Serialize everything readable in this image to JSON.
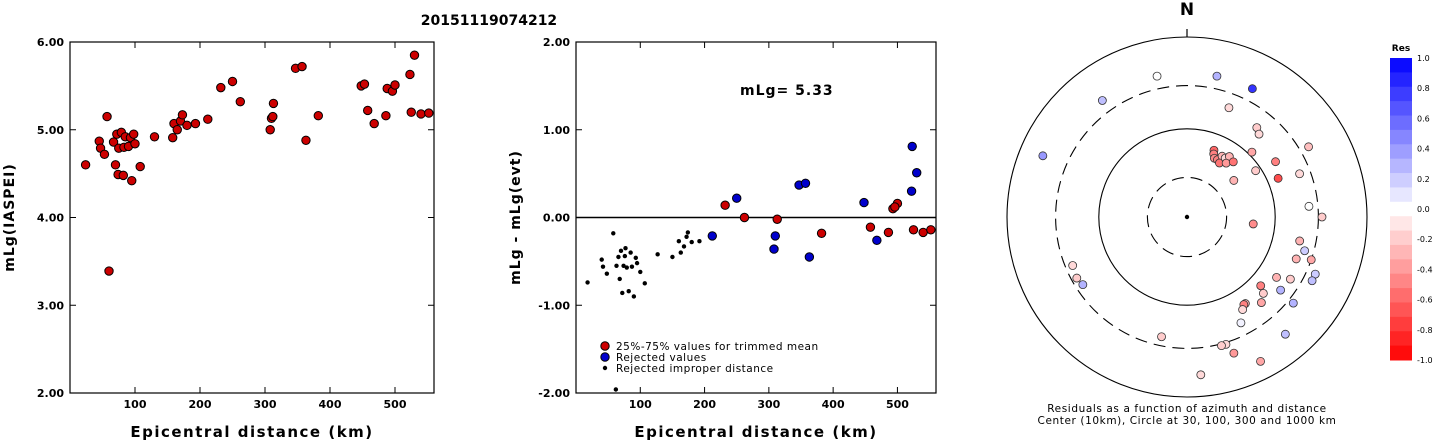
{
  "title": "20151119074212",
  "chart_data": [
    {
      "type": "scatter",
      "xlabel": "Epicentral distance (km)",
      "ylabel": "mLg(IASPEI)",
      "xlim": [
        0,
        560
      ],
      "ylim": [
        2.0,
        6.0
      ],
      "xticks": [
        {
          "v": 100,
          "label": "100"
        },
        {
          "v": 200,
          "label": "200"
        },
        {
          "v": 300,
          "label": "300"
        },
        {
          "v": 400,
          "label": "400"
        },
        {
          "v": 500,
          "label": "500"
        }
      ],
      "yticks": [
        {
          "v": 2,
          "label": "2.00"
        },
        {
          "v": 3,
          "label": "3.00"
        },
        {
          "v": 4,
          "label": "4.00"
        },
        {
          "v": 5,
          "label": "5.00"
        },
        {
          "v": 6,
          "label": "6.00"
        }
      ],
      "color": "#cc0000",
      "points": [
        [
          24,
          4.6
        ],
        [
          45,
          4.87
        ],
        [
          47,
          4.79
        ],
        [
          53,
          4.72
        ],
        [
          57,
          5.15
        ],
        [
          60,
          3.39
        ],
        [
          67,
          4.86
        ],
        [
          70,
          4.6
        ],
        [
          72,
          4.95
        ],
        [
          74,
          4.49
        ],
        [
          75,
          4.79
        ],
        [
          79,
          4.97
        ],
        [
          82,
          4.48
        ],
        [
          83,
          4.8
        ],
        [
          85,
          4.92
        ],
        [
          90,
          4.81
        ],
        [
          93,
          4.91
        ],
        [
          95,
          4.42
        ],
        [
          98,
          4.95
        ],
        [
          100,
          4.84
        ],
        [
          108,
          4.58
        ],
        [
          130,
          4.92
        ],
        [
          158,
          4.91
        ],
        [
          160,
          5.07
        ],
        [
          165,
          5.0
        ],
        [
          170,
          5.1
        ],
        [
          173,
          5.17
        ],
        [
          180,
          5.05
        ],
        [
          193,
          5.07
        ],
        [
          212,
          5.12
        ],
        [
          232,
          5.48
        ],
        [
          250,
          5.55
        ],
        [
          262,
          5.32
        ],
        [
          308,
          5.0
        ],
        [
          310,
          5.13
        ],
        [
          312,
          5.15
        ],
        [
          313,
          5.3
        ],
        [
          347,
          5.7
        ],
        [
          357,
          5.72
        ],
        [
          363,
          4.88
        ],
        [
          382,
          5.16
        ],
        [
          448,
          5.5
        ],
        [
          453,
          5.52
        ],
        [
          458,
          5.22
        ],
        [
          468,
          5.07
        ],
        [
          486,
          5.16
        ],
        [
          488,
          5.47
        ],
        [
          496,
          5.44
        ],
        [
          500,
          5.51
        ],
        [
          523,
          5.63
        ],
        [
          525,
          5.2
        ],
        [
          530,
          5.85
        ],
        [
          540,
          5.18
        ],
        [
          552,
          5.19
        ]
      ]
    },
    {
      "type": "scatter",
      "xlabel": "Epicentral distance (km)",
      "ylabel": "mLg - mLg(evt)",
      "xlim": [
        0,
        560
      ],
      "ylim": [
        -2.0,
        2.0
      ],
      "xticks": [
        {
          "v": 100,
          "label": "100"
        },
        {
          "v": 200,
          "label": "200"
        },
        {
          "v": 300,
          "label": "300"
        },
        {
          "v": 400,
          "label": "400"
        },
        {
          "v": 500,
          "label": "500"
        }
      ],
      "yticks": [
        {
          "v": -2,
          "label": "-2.00"
        },
        {
          "v": -1,
          "label": "-1.00"
        },
        {
          "v": 0,
          "label": "0.00"
        },
        {
          "v": 1,
          "label": "1.00"
        },
        {
          "v": 2,
          "label": "2.00"
        }
      ],
      "annotation": "mLg= 5.33",
      "legend": {
        "placement": "bottom-left",
        "entries": [
          {
            "label": "25%-75% values for trimmed mean",
            "color": "#cc0000",
            "marker": "large"
          },
          {
            "label": "Rejected values",
            "color": "#0000cc",
            "marker": "large"
          },
          {
            "label": "Rejected improper distance",
            "color": "#000000",
            "marker": "small"
          }
        ]
      },
      "series": [
        {
          "name": "25%-75% values for trimmed mean",
          "color": "#cc0000",
          "marker": "large",
          "points": [
            [
              232,
              0.14
            ],
            [
              262,
              0.0
            ],
            [
              313,
              -0.02
            ],
            [
              382,
              -0.18
            ],
            [
              458,
              -0.11
            ],
            [
              486,
              -0.17
            ],
            [
              493,
              0.1
            ],
            [
              500,
              0.16
            ],
            [
              496,
              0.12
            ],
            [
              525,
              -0.14
            ],
            [
              540,
              -0.17
            ],
            [
              552,
              -0.14
            ]
          ]
        },
        {
          "name": "Rejected values",
          "color": "#0000cc",
          "marker": "large",
          "points": [
            [
              212,
              -0.21
            ],
            [
              250,
              0.22
            ],
            [
              308,
              -0.36
            ],
            [
              310,
              -0.21
            ],
            [
              347,
              0.37
            ],
            [
              357,
              0.39
            ],
            [
              363,
              -0.45
            ],
            [
              448,
              0.17
            ],
            [
              468,
              -0.26
            ],
            [
              522,
              0.3
            ],
            [
              523,
              0.81
            ],
            [
              530,
              0.51
            ]
          ]
        },
        {
          "name": "Rejected improper distance",
          "color": "#000000",
          "marker": "small",
          "points": [
            [
              18,
              -0.74
            ],
            [
              40,
              -0.48
            ],
            [
              42,
              -0.56
            ],
            [
              48,
              -0.64
            ],
            [
              58,
              -0.18
            ],
            [
              63,
              -0.55
            ],
            [
              66,
              -0.45
            ],
            [
              68,
              -0.7
            ],
            [
              70,
              -0.38
            ],
            [
              72,
              -0.86
            ],
            [
              74,
              -0.55
            ],
            [
              76,
              -0.44
            ],
            [
              77,
              -0.35
            ],
            [
              79,
              -0.57
            ],
            [
              82,
              -0.84
            ],
            [
              85,
              -0.4
            ],
            [
              87,
              -0.56
            ],
            [
              90,
              -0.9
            ],
            [
              93,
              -0.46
            ],
            [
              95,
              -0.52
            ],
            [
              100,
              -0.62
            ],
            [
              107,
              -0.75
            ],
            [
              127,
              -0.42
            ],
            [
              150,
              -0.45
            ],
            [
              160,
              -0.27
            ],
            [
              163,
              -0.4
            ],
            [
              168,
              -0.33
            ],
            [
              172,
              -0.22
            ],
            [
              174,
              -0.17
            ],
            [
              180,
              -0.28
            ],
            [
              192,
              -0.27
            ],
            [
              62,
              -1.96
            ]
          ]
        }
      ]
    },
    {
      "type": "scatter",
      "subtype": "polar",
      "north_label": "N",
      "caption_line1": "Residuals as a function of azimuth and distance",
      "caption_line2": "Center (10km), Circle at 30, 100, 300 and 1000 km",
      "colorbar": {
        "title": "Res",
        "ticks": [
          {
            "v": 1.0,
            "label": "1.0"
          },
          {
            "v": 0.8,
            "label": "0.8"
          },
          {
            "v": 0.6,
            "label": "0.6"
          },
          {
            "v": 0.4,
            "label": "0.4"
          },
          {
            "v": 0.2,
            "label": "0.2"
          },
          {
            "v": 0.0,
            "label": "0.0"
          },
          {
            "v": -0.2,
            "label": "-0.2"
          },
          {
            "v": -0.4,
            "label": "-0.4"
          },
          {
            "v": -0.6,
            "label": "-0.6"
          },
          {
            "v": -0.8,
            "label": "-0.8"
          },
          {
            "v": -1.0,
            "label": "-1.0"
          }
        ],
        "max_color": "#0000ff",
        "min_color": "#ff0000"
      },
      "circles": [
        {
          "radius": 0.22,
          "style": "dashed"
        },
        {
          "radius": 0.49,
          "style": "solid"
        },
        {
          "radius": 0.73,
          "style": "dashed"
        },
        {
          "radius": 1.0,
          "style": "solid"
        }
      ],
      "points": [
        [
          0.0,
          0.0,
          0.0
        ],
        [
          12,
          0.8,
          0.3
        ],
        [
          27,
          0.8,
          0.8
        ],
        [
          21,
          0.65,
          -0.15
        ],
        [
          38,
          0.63,
          -0.2
        ],
        [
          41,
          0.61,
          -0.15
        ],
        [
          60,
          0.78,
          -0.25
        ],
        [
          -12,
          0.8,
          0.0
        ],
        [
          -36,
          0.8,
          0.25
        ],
        [
          -67,
          0.87,
          0.4
        ],
        [
          22,
          0.4,
          -0.6
        ],
        [
          23,
          0.38,
          -0.5
        ],
        [
          25,
          0.36,
          -0.45
        ],
        [
          28,
          0.36,
          -0.5
        ],
        [
          30,
          0.39,
          -0.3
        ],
        [
          31,
          0.35,
          -0.55
        ],
        [
          33,
          0.39,
          -0.15
        ],
        [
          35,
          0.41,
          -0.3
        ],
        [
          36,
          0.37,
          -0.4
        ],
        [
          40,
          0.4,
          -0.55
        ],
        [
          45,
          0.51,
          -0.35
        ],
        [
          52,
          0.33,
          -0.3
        ],
        [
          56,
          0.46,
          -0.2
        ],
        [
          58,
          0.58,
          -0.5
        ],
        [
          67,
          0.55,
          -0.7
        ],
        [
          69,
          0.67,
          -0.15
        ],
        [
          85,
          0.68,
          0.0
        ],
        [
          90,
          0.75,
          -0.2
        ],
        [
          96,
          0.37,
          -0.45
        ],
        [
          102,
          0.64,
          -0.3
        ],
        [
          106,
          0.68,
          0.2
        ],
        [
          109,
          0.73,
          -0.35
        ],
        [
          111,
          0.65,
          -0.3
        ],
        [
          114,
          0.78,
          0.2
        ],
        [
          117,
          0.78,
          0.25
        ],
        [
          121,
          0.67,
          -0.2
        ],
        [
          124,
          0.6,
          -0.3
        ],
        [
          128,
          0.66,
          0.3
        ],
        [
          129,
          0.76,
          0.3
        ],
        [
          133,
          0.56,
          -0.5
        ],
        [
          135,
          0.6,
          -0.2
        ],
        [
          139,
          0.63,
          -0.35
        ],
        [
          140,
          0.85,
          0.25
        ],
        [
          146,
          0.58,
          -0.3
        ],
        [
          147,
          0.58,
          -0.5
        ],
        [
          149,
          0.6,
          -0.15
        ],
        [
          153,
          0.66,
          0.05
        ],
        [
          153,
          0.9,
          -0.35
        ],
        [
          161,
          0.8,
          -0.4
        ],
        [
          163,
          0.74,
          -0.15
        ],
        [
          165,
          0.74,
          -0.2
        ],
        [
          175,
          0.88,
          -0.15
        ],
        [
          192,
          0.68,
          -0.2
        ],
        [
          237,
          0.69,
          0.3
        ],
        [
          241,
          0.7,
          -0.2
        ],
        [
          247,
          0.69,
          -0.15
        ]
      ]
    }
  ]
}
